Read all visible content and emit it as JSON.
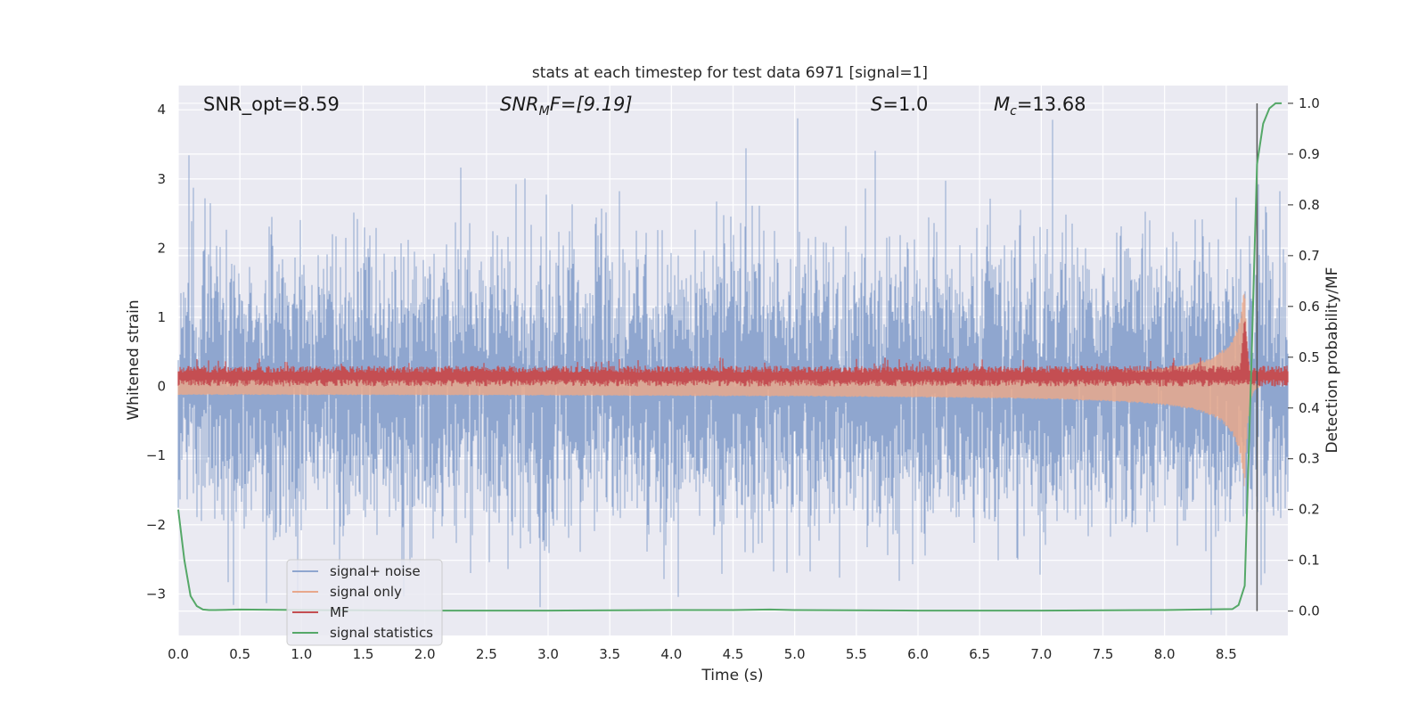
{
  "chart_data": {
    "type": "line",
    "title": "stats at each timestep for test data 6971 [signal=1]",
    "xlabel": "Time (s)",
    "ylabel": "Whitened strain",
    "ylabel_right": "Detection probability/MF",
    "xlim": [
      0.0,
      9.0
    ],
    "ylim": [
      -3.6,
      4.35
    ],
    "ylim_right": [
      -0.048,
      1.035
    ],
    "x_ticks": [
      "0.0",
      "0.5",
      "1.0",
      "1.5",
      "2.0",
      "2.5",
      "3.0",
      "3.5",
      "4.0",
      "4.5",
      "5.0",
      "5.5",
      "6.0",
      "6.5",
      "7.0",
      "7.5",
      "8.0",
      "8.5"
    ],
    "y_ticks": [
      "4",
      "3",
      "2",
      "1",
      "0",
      "−1",
      "−2",
      "−3"
    ],
    "y_ticks_right": [
      "1.0",
      "0.9",
      "0.8",
      "0.7",
      "0.6",
      "0.5",
      "0.4",
      "0.3",
      "0.2",
      "0.1",
      "0.0"
    ],
    "grid": true,
    "legend_position": "lower-left",
    "annotations": {
      "snr_opt": "SNR_opt=8.59",
      "snr_mf_main": "SNR",
      "snr_mf_sub": "M",
      "snr_mf_rest": "F=[9.19]",
      "s_main": "S",
      "s_rest": "=1.0",
      "mc_main": "M",
      "mc_sub": "c",
      "mc_rest": "=13.68"
    },
    "vertical_marker": {
      "x": 8.75,
      "color": "#555555"
    },
    "series": [
      {
        "name": "signal+ noise",
        "color": "#8fa6cf",
        "axis": "left",
        "description": "whitened strain, noise band roughly between -2 and 2 with spikes to ~4",
        "noise_std": 0.9,
        "spike_max": 4.0,
        "spike_min": -3.3
      },
      {
        "name": "signal only",
        "color": "#e8a88c",
        "axis": "left",
        "description": "chirp growing to amplitude ~1.55 near t=8.65",
        "peak_time": 8.65,
        "peak_amplitude": 1.55
      },
      {
        "name": "MF",
        "color": "#c44e52",
        "axis": "left",
        "description": "matched filter output fluctuating around 0.15",
        "mean": 0.15,
        "spread": 0.1,
        "peak_time": 8.65,
        "peak_value": 1.0
      },
      {
        "name": "signal statistics",
        "color": "#55a868",
        "axis": "right",
        "x": [
          0.0,
          0.05,
          0.1,
          0.15,
          0.2,
          0.25,
          0.3,
          0.5,
          1.0,
          2.0,
          3.0,
          4.0,
          4.5,
          4.8,
          5.0,
          6.0,
          7.0,
          8.0,
          8.55,
          8.6,
          8.65,
          8.7,
          8.75,
          8.8,
          8.85,
          8.9,
          8.95
        ],
        "values": [
          0.2,
          0.1,
          0.03,
          0.01,
          0.003,
          0.002,
          0.002,
          0.003,
          0.002,
          0.001,
          0.001,
          0.002,
          0.002,
          0.003,
          0.002,
          0.001,
          0.001,
          0.002,
          0.004,
          0.012,
          0.05,
          0.45,
          0.88,
          0.96,
          0.99,
          1.0,
          1.0
        ]
      }
    ]
  }
}
